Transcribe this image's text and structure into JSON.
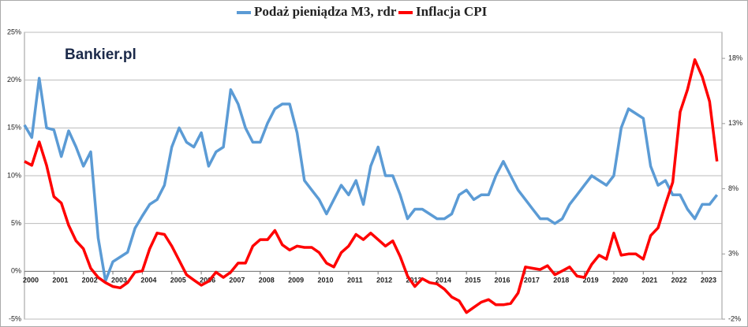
{
  "chart_data": {
    "type": "line",
    "watermark": "Bankier.pl",
    "legend": "top",
    "grid": true,
    "x": [
      2000,
      2000.25,
      2000.5,
      2000.75,
      2001,
      2001.25,
      2001.5,
      2001.75,
      2002,
      2002.25,
      2002.5,
      2002.75,
      2003,
      2003.25,
      2003.5,
      2003.75,
      2004,
      2004.25,
      2004.5,
      2004.75,
      2005,
      2005.25,
      2005.5,
      2005.75,
      2006,
      2006.25,
      2006.5,
      2006.75,
      2007,
      2007.25,
      2007.5,
      2007.75,
      2008,
      2008.25,
      2008.5,
      2008.75,
      2009,
      2009.25,
      2009.5,
      2009.75,
      2010,
      2010.25,
      2010.5,
      2010.75,
      2011,
      2011.25,
      2011.5,
      2011.75,
      2012,
      2012.25,
      2012.5,
      2012.75,
      2013,
      2013.25,
      2013.5,
      2013.75,
      2014,
      2014.25,
      2014.5,
      2014.75,
      2015,
      2015.25,
      2015.5,
      2015.75,
      2016,
      2016.25,
      2016.5,
      2016.75,
      2017,
      2017.25,
      2017.5,
      2017.75,
      2018,
      2018.25,
      2018.5,
      2018.75,
      2019,
      2019.25,
      2019.5,
      2019.75,
      2020,
      2020.25,
      2020.5,
      2020.75,
      2021,
      2021.25,
      2021.5,
      2021.75,
      2022,
      2022.25,
      2022.5,
      2022.75,
      2023,
      2023.25,
      2023.5
    ],
    "xlim": [
      2000,
      2023.67
    ],
    "xticks": [
      2000,
      2001,
      2002,
      2003,
      2004,
      2005,
      2006,
      2007,
      2008,
      2009,
      2010,
      2011,
      2012,
      2013,
      2014,
      2015,
      2016,
      2017,
      2018,
      2019,
      2020,
      2021,
      2022,
      2023
    ],
    "ylim": [
      -5,
      25
    ],
    "yticks": [
      {
        "value": 25,
        "label": "25%"
      },
      {
        "value": 20,
        "label": "20%"
      },
      {
        "value": 15,
        "label": "15%"
      },
      {
        "value": 10,
        "label": "10%"
      },
      {
        "value": 5,
        "label": "5%"
      },
      {
        "value": 0,
        "label": "0%"
      },
      {
        "value": -5,
        "label": "-5%"
      }
    ],
    "y2lim": [
      -2,
      20
    ],
    "y2ticks": [
      {
        "value": 18,
        "label": "18%"
      },
      {
        "value": 13,
        "label": "13%"
      },
      {
        "value": 8,
        "label": "8%"
      },
      {
        "value": 3,
        "label": "3%"
      },
      {
        "value": -2,
        "label": "-2%"
      }
    ],
    "series": [
      {
        "name": "Podaż pieniądza M3, rdr",
        "color": "#5b9bd5",
        "values": [
          15.3,
          14.0,
          20.2,
          15.0,
          14.8,
          12.0,
          14.7,
          13.0,
          11.0,
          12.5,
          3.5,
          -1.0,
          1.0,
          1.5,
          2.0,
          4.5,
          5.8,
          7.0,
          7.5,
          9.0,
          13.0,
          15.0,
          13.5,
          13.0,
          14.5,
          11.0,
          12.5,
          13.0,
          19.0,
          17.5,
          15.0,
          13.5,
          13.5,
          15.5,
          17.0,
          17.5,
          17.5,
          14.5,
          9.5,
          8.5,
          7.5,
          6.0,
          7.5,
          9.0,
          8.0,
          9.5,
          7.0,
          11.0,
          13.0,
          10.0,
          10.0,
          8.0,
          5.5,
          6.5,
          6.5,
          6.0,
          5.5,
          5.5,
          6.0,
          8.0,
          8.5,
          7.5,
          8.0,
          8.0,
          10.0,
          11.5,
          10.0,
          8.5,
          7.5,
          6.5,
          5.5,
          5.5,
          5.0,
          5.5,
          7.0,
          8.0,
          9.0,
          10.0,
          9.5,
          9.0,
          10.0,
          15.0,
          17.0,
          16.5,
          16.0,
          11.0,
          9.0,
          9.5,
          8.0,
          8.0,
          6.5,
          5.5,
          7.0,
          7.0,
          8.0
        ]
      },
      {
        "name": "Inflacja CPI",
        "color": "#ff0000",
        "axis": "y2",
        "values": [
          10.1,
          9.8,
          11.6,
          9.8,
          7.4,
          6.9,
          5.2,
          4.0,
          3.4,
          1.9,
          1.2,
          0.8,
          0.5,
          0.4,
          0.8,
          1.6,
          1.7,
          3.4,
          4.6,
          4.5,
          3.6,
          2.5,
          1.4,
          1.0,
          0.6,
          0.9,
          1.6,
          1.2,
          1.6,
          2.3,
          2.3,
          3.6,
          4.1,
          4.1,
          4.8,
          3.7,
          3.3,
          3.6,
          3.5,
          3.5,
          3.1,
          2.3,
          2.0,
          3.1,
          3.6,
          4.5,
          4.1,
          4.6,
          4.1,
          3.6,
          4.0,
          2.8,
          1.3,
          0.5,
          1.1,
          0.8,
          0.7,
          0.3,
          -0.3,
          -0.6,
          -1.5,
          -1.1,
          -0.7,
          -0.5,
          -0.9,
          -0.9,
          -0.8,
          0.0,
          2.0,
          1.9,
          1.8,
          2.1,
          1.4,
          1.7,
          2.0,
          1.3,
          1.2,
          2.2,
          2.9,
          2.6,
          4.6,
          2.9,
          3.0,
          3.0,
          2.6,
          4.4,
          5.0,
          6.8,
          8.5,
          13.9,
          15.6,
          17.9,
          16.6,
          14.7,
          10.1
        ]
      }
    ]
  }
}
